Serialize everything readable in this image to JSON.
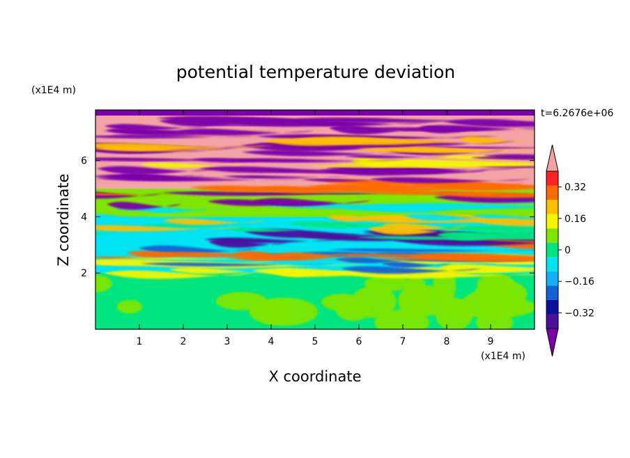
{
  "chart_data": {
    "type": "heatmap",
    "title": "potential temperature deviation",
    "xlabel": "X coordinate",
    "ylabel": "Z coordinate",
    "x_unit": "(x1E4 m)",
    "y_unit": "(x1E4 m)",
    "time_label": "t=6.2676e+06",
    "xlim": [
      0,
      10
    ],
    "ylim": [
      0,
      7.8
    ],
    "x_ticks": [
      1,
      2,
      3,
      4,
      5,
      6,
      7,
      8,
      9
    ],
    "y_ticks": [
      2,
      4,
      6
    ],
    "colorbar": {
      "levels": [
        -0.48,
        -0.4,
        -0.32,
        -0.24,
        -0.16,
        -0.08,
        0,
        0.08,
        0.16,
        0.24,
        0.32,
        0.4,
        0.48
      ],
      "colors": [
        "#7b00aa",
        "#4b0e9d",
        "#0b0f9a",
        "#1262d6",
        "#0fb0f5",
        "#00e3f0",
        "#00e57f",
        "#7ee600",
        "#f5f500",
        "#ffbf00",
        "#ff6a00",
        "#ff2020",
        "#f3a3a3"
      ],
      "tick_labels": [
        "0.32",
        "0.16",
        "0",
        "−0.16",
        "−0.32"
      ],
      "tick_values": [
        0.32,
        0.16,
        0,
        -0.16,
        -0.32
      ],
      "extend": "both"
    },
    "field_description_layers": [
      {
        "z_range": [
          0,
          2.0
        ],
        "dominant": [
          0,
          0.08
        ]
      },
      {
        "z_range": [
          2.0,
          4.0
        ],
        "dominant": [
          -0.16,
          0.48
        ]
      },
      {
        "z_range": [
          4.0,
          5.0
        ],
        "dominant": [
          -0.08,
          0.16
        ]
      },
      {
        "z_range": [
          5.0,
          7.8
        ],
        "dominant": [
          -0.48,
          0.48
        ]
      }
    ]
  }
}
